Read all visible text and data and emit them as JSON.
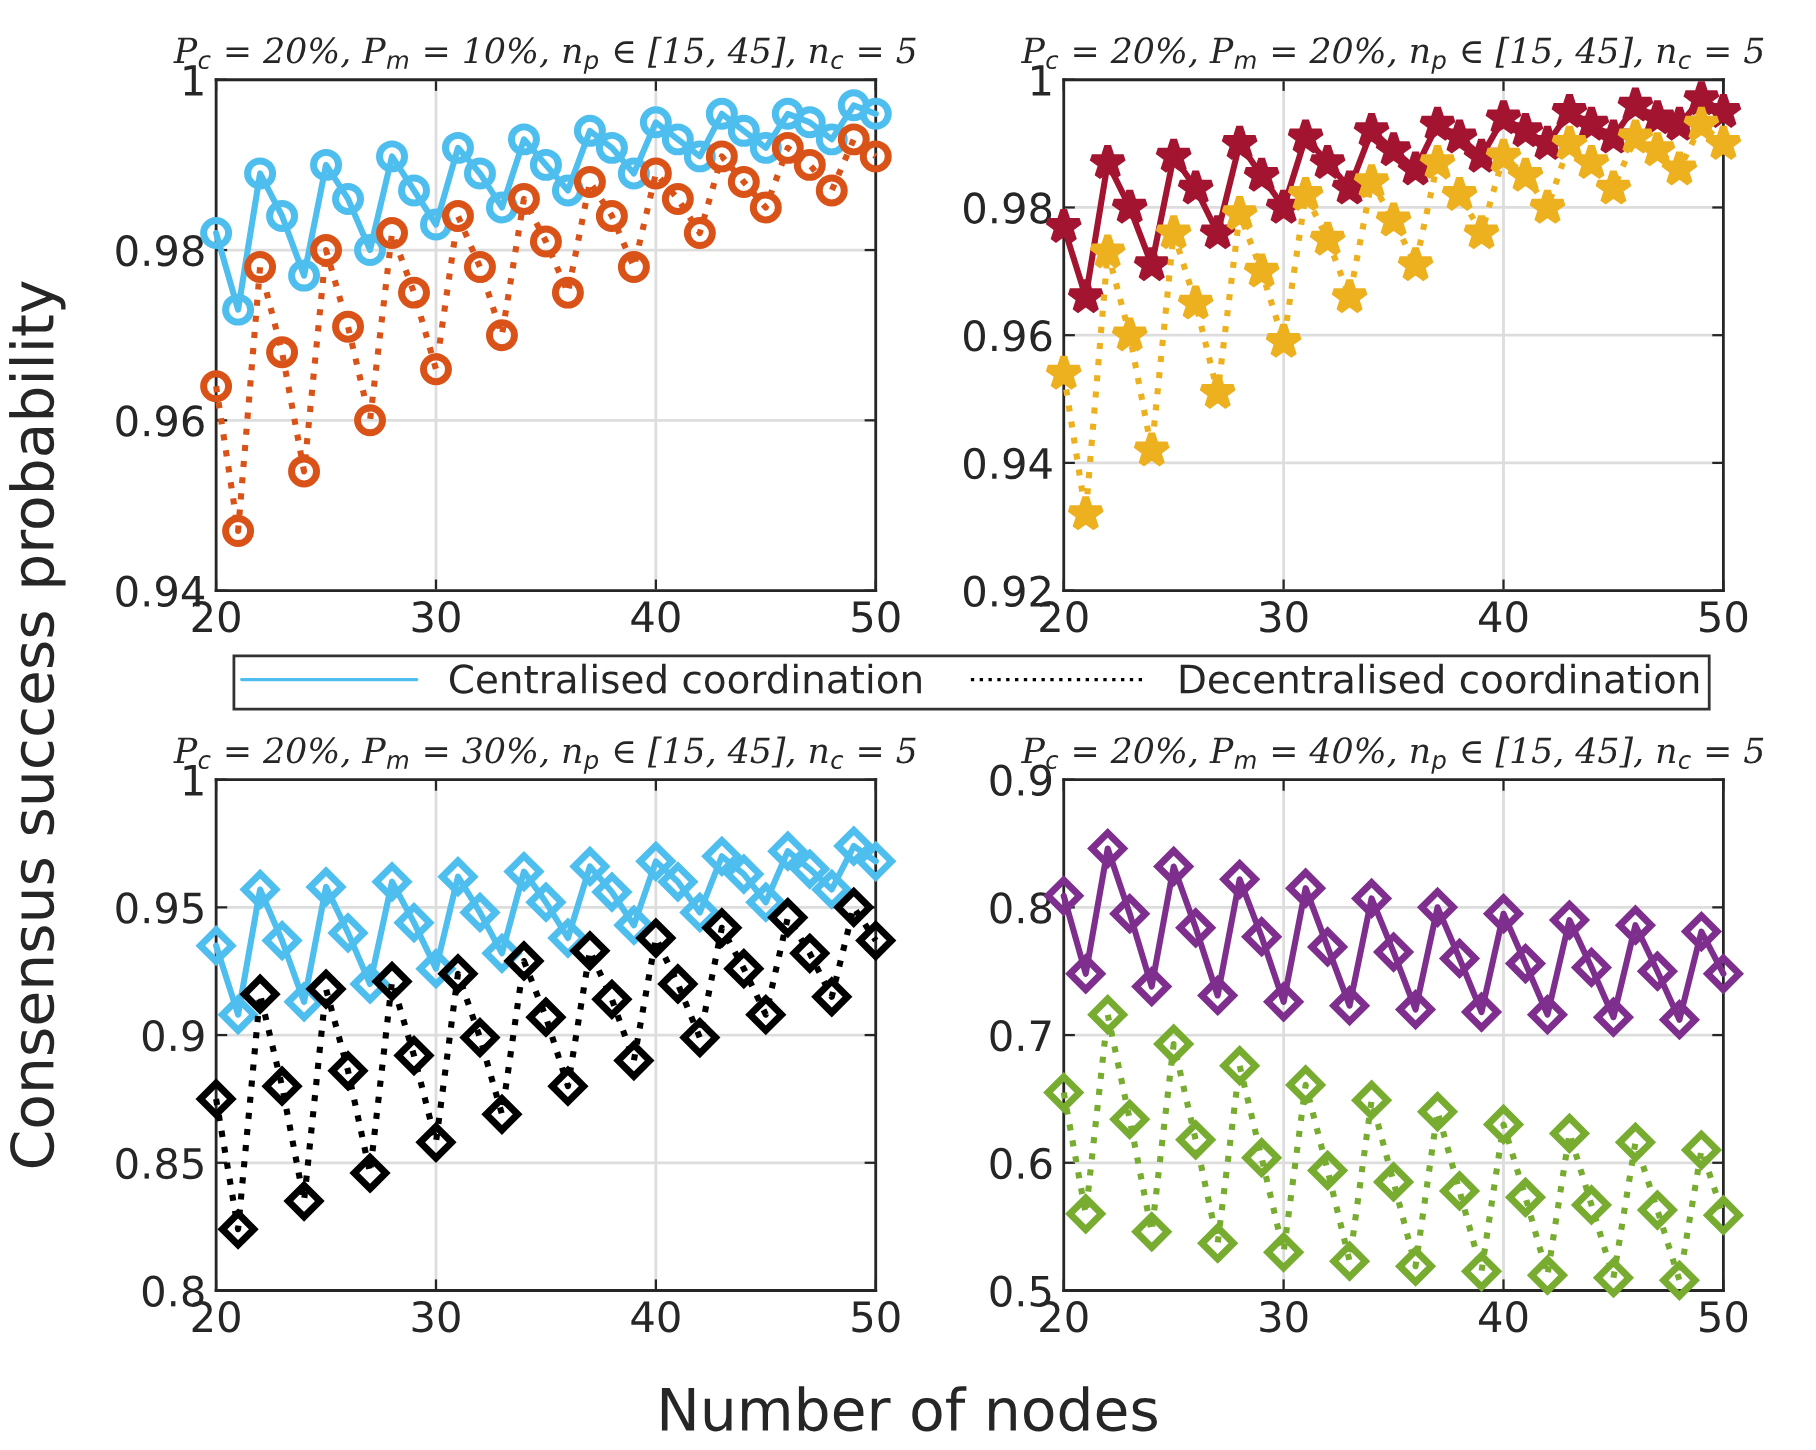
{
  "chart_data": [
    {
      "type": "line",
      "title": "P$_{c}$ = 20%, P$_{m}$ = 10%, n$_{p}$ ∈ [15, 45], n$_{c}$ = 5",
      "xlabel": "Number of nodes",
      "ylabel": "Consensus success probability",
      "grid": true,
      "marker": "circle",
      "x": [
        20,
        21,
        22,
        23,
        24,
        25,
        26,
        27,
        28,
        29,
        30,
        31,
        32,
        33,
        34,
        35,
        36,
        37,
        38,
        39,
        40,
        41,
        42,
        43,
        44,
        45,
        46,
        47,
        48,
        49,
        50
      ],
      "xlim": [
        20,
        50
      ],
      "xticks": [
        20,
        30,
        40,
        50
      ],
      "ylim": [
        0.94,
        1
      ],
      "yticks": [
        0.94,
        0.96,
        0.98,
        1
      ],
      "series": [
        {
          "color": "#4dbeee",
          "line_style": "solid",
          "values": [
            0.982,
            0.973,
            0.989,
            0.984,
            0.977,
            0.99,
            0.986,
            0.98,
            0.991,
            0.987,
            0.983,
            0.992,
            0.989,
            0.985,
            0.993,
            0.99,
            0.987,
            0.994,
            0.992,
            0.989,
            0.995,
            0.993,
            0.991,
            0.996,
            0.994,
            0.992,
            0.996,
            0.995,
            0.993,
            0.997,
            0.996
          ]
        },
        {
          "color": "#d95319",
          "line_style": "dotted",
          "values": [
            0.964,
            0.947,
            0.978,
            0.968,
            0.954,
            0.98,
            0.971,
            0.96,
            0.982,
            0.975,
            0.966,
            0.984,
            0.978,
            0.97,
            0.986,
            0.981,
            0.975,
            0.988,
            0.984,
            0.978,
            0.989,
            0.986,
            0.982,
            0.991,
            0.988,
            0.985,
            0.992,
            0.99,
            0.987,
            0.993,
            0.991
          ]
        }
      ]
    },
    {
      "type": "line",
      "title": "P$_{c}$ = 20%, P$_{m}$ = 20%, n$_{p}$ ∈ [15, 45], n$_{c}$ = 5",
      "grid": true,
      "marker": "star",
      "x": [
        20,
        21,
        22,
        23,
        24,
        25,
        26,
        27,
        28,
        29,
        30,
        31,
        32,
        33,
        34,
        35,
        36,
        37,
        38,
        39,
        40,
        41,
        42,
        43,
        44,
        45,
        46,
        47,
        48,
        49,
        50
      ],
      "xlim": [
        20,
        50
      ],
      "xticks": [
        20,
        30,
        40,
        50
      ],
      "ylim": [
        0.92,
        1
      ],
      "yticks": [
        0.92,
        0.94,
        0.96,
        0.98,
        1
      ],
      "series": [
        {
          "color": "#a2142f",
          "line_style": "solid",
          "values": [
            0.977,
            0.966,
            0.987,
            0.98,
            0.971,
            0.988,
            0.983,
            0.976,
            0.99,
            0.985,
            0.98,
            0.991,
            0.987,
            0.983,
            0.992,
            0.989,
            0.986,
            0.993,
            0.991,
            0.988,
            0.994,
            0.992,
            0.99,
            0.995,
            0.993,
            0.991,
            0.996,
            0.994,
            0.993,
            0.997,
            0.995
          ]
        },
        {
          "color": "#edb120",
          "line_style": "dotted",
          "values": [
            0.954,
            0.932,
            0.973,
            0.96,
            0.942,
            0.976,
            0.965,
            0.951,
            0.979,
            0.97,
            0.959,
            0.982,
            0.975,
            0.966,
            0.984,
            0.978,
            0.971,
            0.987,
            0.982,
            0.976,
            0.988,
            0.985,
            0.98,
            0.99,
            0.987,
            0.983,
            0.991,
            0.989,
            0.986,
            0.993,
            0.99
          ]
        }
      ]
    },
    {
      "type": "line",
      "title": "P$_{c}$ = 20%, P$_{m}$ = 30%, n$_{p}$ ∈ [15, 45], n$_{c}$ = 5",
      "legend": "top",
      "grid": true,
      "marker": "diamond",
      "x": [
        20,
        21,
        22,
        23,
        24,
        25,
        26,
        27,
        28,
        29,
        30,
        31,
        32,
        33,
        34,
        35,
        36,
        37,
        38,
        39,
        40,
        41,
        42,
        43,
        44,
        45,
        46,
        47,
        48,
        49,
        50
      ],
      "xlim": [
        20,
        50
      ],
      "xticks": [
        20,
        30,
        40,
        50
      ],
      "ylim": [
        0.8,
        1
      ],
      "yticks": [
        0.8,
        0.85,
        0.9,
        0.95,
        1
      ],
      "series": [
        {
          "name": "Centralised coordination",
          "color": "#4dbeee",
          "line_style": "solid",
          "values": [
            0.935,
            0.908,
            0.957,
            0.937,
            0.913,
            0.958,
            0.94,
            0.92,
            0.96,
            0.944,
            0.926,
            0.962,
            0.948,
            0.932,
            0.964,
            0.952,
            0.938,
            0.966,
            0.956,
            0.943,
            0.968,
            0.96,
            0.948,
            0.97,
            0.963,
            0.952,
            0.972,
            0.965,
            0.957,
            0.974,
            0.968
          ]
        },
        {
          "name": "Decentralised coordination",
          "color": "#000000",
          "line_style": "dotted",
          "values": [
            0.875,
            0.824,
            0.916,
            0.88,
            0.835,
            0.918,
            0.886,
            0.846,
            0.921,
            0.892,
            0.858,
            0.924,
            0.899,
            0.869,
            0.929,
            0.907,
            0.88,
            0.933,
            0.914,
            0.89,
            0.938,
            0.92,
            0.899,
            0.942,
            0.926,
            0.908,
            0.946,
            0.932,
            0.915,
            0.95,
            0.937
          ]
        }
      ]
    },
    {
      "type": "line",
      "title": "P$_{c}$ = 20%, P$_{m}$ = 40%, n$_{p}$ ∈ [15, 45], n$_{c}$ = 5",
      "grid": true,
      "marker": "diamond",
      "x": [
        20,
        21,
        22,
        23,
        24,
        25,
        26,
        27,
        28,
        29,
        30,
        31,
        32,
        33,
        34,
        35,
        36,
        37,
        38,
        39,
        40,
        41,
        42,
        43,
        44,
        45,
        46,
        47,
        48,
        49,
        50
      ],
      "xlim": [
        20,
        50
      ],
      "xticks": [
        20,
        30,
        40,
        50
      ],
      "ylim": [
        0.5,
        0.9
      ],
      "yticks": [
        0.5,
        0.6,
        0.7,
        0.8,
        0.9
      ],
      "series": [
        {
          "color": "#7e2f8e",
          "line_style": "solid",
          "values": [
            0.809,
            0.748,
            0.846,
            0.795,
            0.738,
            0.832,
            0.784,
            0.731,
            0.822,
            0.777,
            0.726,
            0.815,
            0.769,
            0.723,
            0.807,
            0.765,
            0.72,
            0.8,
            0.76,
            0.718,
            0.795,
            0.756,
            0.716,
            0.79,
            0.753,
            0.714,
            0.786,
            0.75,
            0.712,
            0.781,
            0.748
          ]
        },
        {
          "color": "#77ac30",
          "line_style": "dotted",
          "values": [
            0.655,
            0.56,
            0.716,
            0.634,
            0.546,
            0.693,
            0.618,
            0.537,
            0.676,
            0.604,
            0.53,
            0.661,
            0.594,
            0.523,
            0.649,
            0.585,
            0.519,
            0.64,
            0.578,
            0.515,
            0.63,
            0.573,
            0.512,
            0.623,
            0.567,
            0.51,
            0.616,
            0.563,
            0.508,
            0.61,
            0.559
          ]
        }
      ]
    }
  ]
}
